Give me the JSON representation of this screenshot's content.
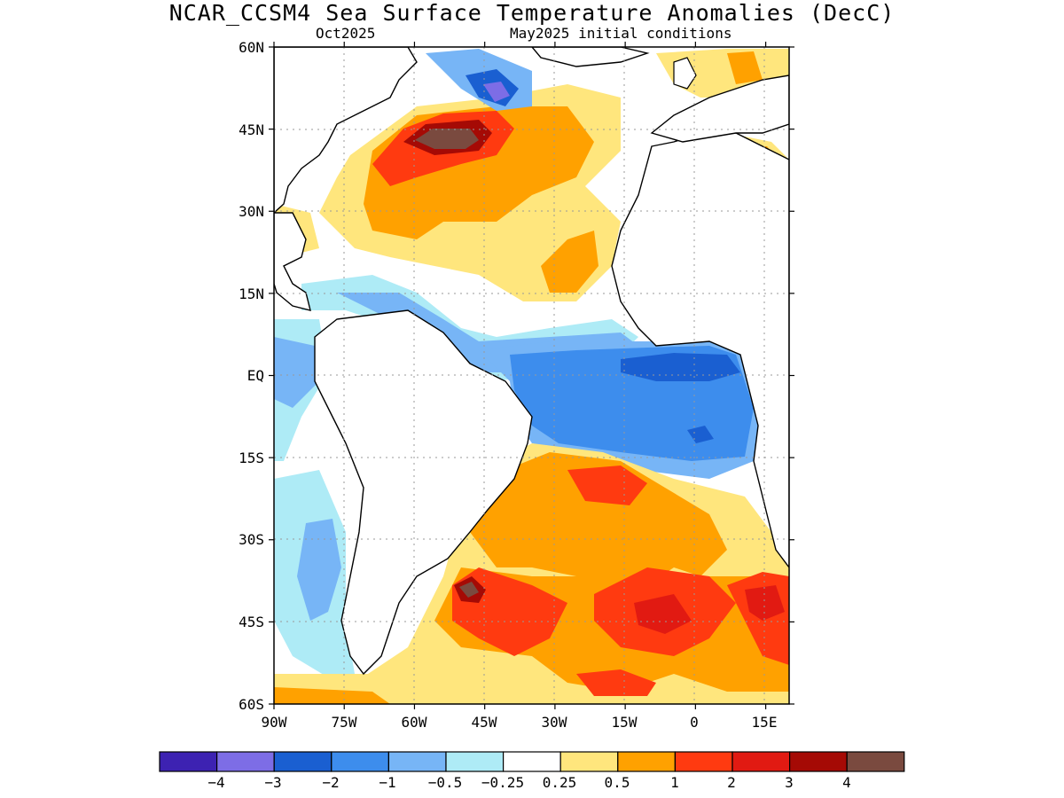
{
  "header": {
    "title": "NCAR_CCSM4 Sea Surface Temperature Anomalies (DecC)",
    "valid_month": "Oct2025",
    "init_conditions": "May2025 initial conditions"
  },
  "map": {
    "lon_range": [
      -90,
      20
    ],
    "lat_range": [
      -60,
      60
    ],
    "lat_ticks": [
      {
        "value": 60,
        "label": "60N"
      },
      {
        "value": 45,
        "label": "45N"
      },
      {
        "value": 30,
        "label": "30N"
      },
      {
        "value": 15,
        "label": "15N"
      },
      {
        "value": 0,
        "label": "EQ"
      },
      {
        "value": -15,
        "label": "15S"
      },
      {
        "value": -30,
        "label": "30S"
      },
      {
        "value": -45,
        "label": "45S"
      },
      {
        "value": -60,
        "label": "60S"
      }
    ],
    "lon_ticks": [
      {
        "value": -90,
        "label": "90W"
      },
      {
        "value": -75,
        "label": "75W"
      },
      {
        "value": -60,
        "label": "60W"
      },
      {
        "value": -45,
        "label": "45W"
      },
      {
        "value": -30,
        "label": "30W"
      },
      {
        "value": -15,
        "label": "15W"
      },
      {
        "value": 0,
        "label": "0"
      },
      {
        "value": 15,
        "label": "15E"
      }
    ],
    "gridlines": true
  },
  "colorbar": {
    "colors": [
      "#3d22b2",
      "#7d6de6",
      "#1a5fd1",
      "#3d8ded",
      "#77b5f6",
      "#aeebf6",
      "#ffffff",
      "#ffe67d",
      "#ffa100",
      "#ff3a10",
      "#e11a12",
      "#a50a05",
      "#7a4a3f"
    ],
    "labels": [
      "−4",
      "−3",
      "−2",
      "−1",
      "−0.5",
      "−0.25",
      "0.25",
      "0.5",
      "1",
      "2",
      "3",
      "4"
    ]
  },
  "legend_icons": {
    "colorbar": "colorbar-legend"
  }
}
